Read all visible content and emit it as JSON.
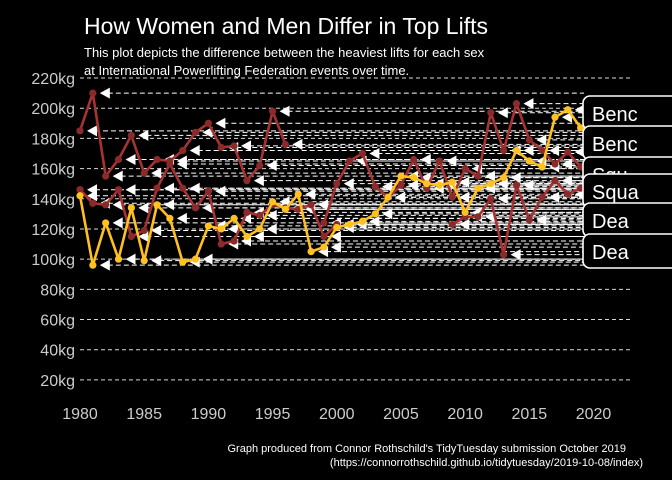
{
  "chart_data": {
    "type": "line",
    "title": "How Women and Men Differ in Top Lifts",
    "subtitle": [
      "This plot depicts the difference between the heaviest lifts for each sex",
      "at International Powerlifting Federation events over time."
    ],
    "caption": [
      "Graph produced from Connor Rothschild's TidyTuesday submission October 2019",
      "(https://connorrothschild.github.io/tidytuesday/2019-10-08/index)"
    ],
    "xlabel": "",
    "ylabel": "",
    "xlim": [
      1980,
      2023
    ],
    "ylim": [
      10,
      220
    ],
    "x_ticks": [
      1980,
      1985,
      1990,
      1995,
      2000,
      2005,
      2010,
      2015,
      2020
    ],
    "y_ticks": [
      20,
      40,
      60,
      80,
      100,
      120,
      140,
      160,
      180,
      200,
      220
    ],
    "y_tick_suffix": "kg",
    "grid": "horizontal dashed",
    "colors": {
      "background": "#000000",
      "text": "#ffffff",
      "tick_text": "#cccccc",
      "grid": "#ffffff",
      "arrow": "#ffffff",
      "men": "#a83232",
      "men_marker": "#8b2a2a",
      "women": "#ffbf1f",
      "women_marker": "#ffc21f"
    },
    "series": [
      {
        "color": "#a83232",
        "marker": "#8b2a2a",
        "x": [
          1980,
          1981,
          1982,
          1983,
          1984,
          1985,
          1986,
          1987,
          1988,
          1989,
          1990,
          1991,
          1992,
          1993,
          1994,
          1995,
          1996
        ],
        "y": [
          185,
          210,
          155,
          166,
          182,
          157,
          166,
          165,
          172,
          184,
          190,
          174,
          175,
          152,
          162,
          198,
          176
        ]
      },
      {
        "color": "#a83232",
        "marker": "#8b2a2a",
        "x": [
          1980,
          1981,
          1982,
          1983,
          1984,
          1985,
          1986,
          1987,
          1988,
          1989,
          1990,
          1991,
          1992,
          1993,
          1994,
          1995,
          1996,
          1997,
          1998,
          1999,
          2000
        ],
        "y": [
          146,
          137,
          136,
          146,
          115,
          119,
          147,
          163,
          147,
          134,
          145,
          110,
          112,
          131,
          129,
          136,
          134,
          133,
          136,
          115,
          123
        ]
      },
      {
        "color": "#a83232",
        "marker": "#8b2a2a",
        "x": [
          1999,
          2000,
          2001,
          2002,
          2003,
          2004,
          2005,
          2006,
          2007,
          2008,
          2009,
          2010,
          2011,
          2012,
          2013,
          2014,
          2015,
          2016,
          2017,
          2018,
          2019
        ],
        "y": [
          124,
          150,
          165,
          170,
          148,
          141,
          149,
          166,
          147,
          165,
          141,
          160,
          155,
          197,
          172,
          203,
          179,
          172,
          163,
          171,
          161
        ]
      },
      {
        "color": "#a83232",
        "marker": "#8b2a2a",
        "x": [
          2009,
          2010,
          2011,
          2012,
          2013,
          2014,
          2015,
          2016,
          2017,
          2018,
          2019
        ],
        "y": [
          123,
          128,
          128,
          140,
          103,
          149,
          126,
          141,
          152,
          143,
          147
        ]
      },
      {
        "color": "#ffbf1f",
        "marker": "#ffc21f",
        "x": [
          1980,
          1981,
          1982,
          1983,
          1984,
          1985,
          1986,
          1987,
          1988,
          1989,
          1990,
          1991,
          1992,
          1993,
          1994,
          1995,
          1996,
          1997,
          1998,
          1999,
          2000,
          2001,
          2002,
          2003,
          2004,
          2005,
          2006,
          2007,
          2008,
          2009,
          2010,
          2011,
          2012,
          2013,
          2014,
          2015,
          2016,
          2017,
          2018,
          2019
        ],
        "y": [
          142,
          96,
          124,
          100,
          134,
          99,
          136,
          127,
          98,
          100,
          122,
          120,
          127,
          115,
          120,
          138,
          133,
          143,
          105,
          108,
          121,
          123,
          125,
          130,
          141,
          155,
          154,
          150,
          149,
          151,
          131,
          147,
          150,
          154,
          172,
          165,
          161,
          194,
          199,
          187
        ]
      }
    ],
    "right_labels": [
      "Bench",
      "Bench",
      "Squat",
      "Squat",
      "Deadlift",
      "Deadlift"
    ],
    "right_labels_displayed": [
      "Benc",
      "Benc",
      "Squ",
      "Squa",
      "Dea",
      "Dea"
    ]
  }
}
